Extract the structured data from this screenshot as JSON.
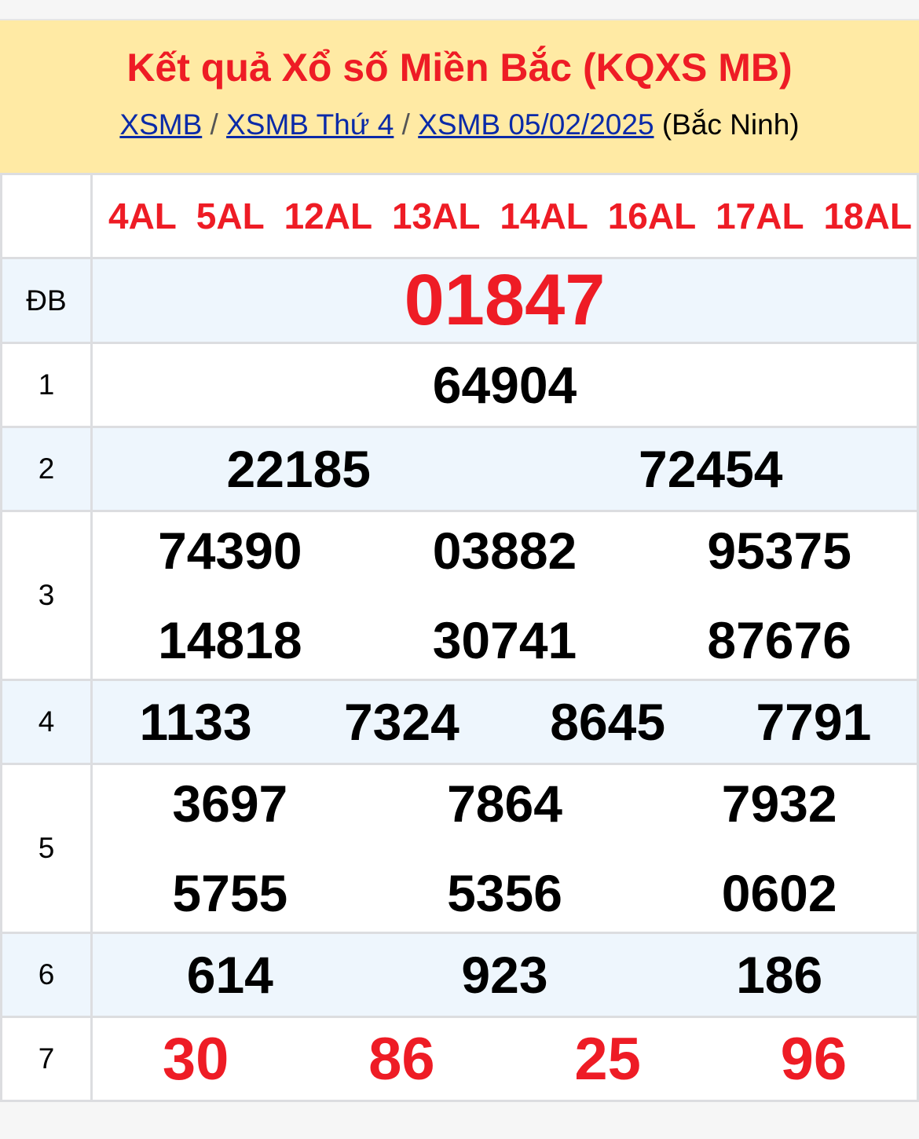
{
  "header": {
    "title": "Kết quả Xổ số Miền Bắc (KQXS MB)",
    "breadcrumb": [
      {
        "label": "XSMB"
      },
      {
        "label": "XSMB Thứ 4"
      },
      {
        "label": "XSMB 05/02/2025"
      }
    ],
    "separator": "/",
    "province": "(Bắc Ninh)"
  },
  "codes": [
    "4AL",
    "5AL",
    "12AL",
    "13AL",
    "14AL",
    "16AL",
    "17AL",
    "18AL"
  ],
  "prizes": [
    {
      "label": "ĐB",
      "numbers": [
        "01847"
      ]
    },
    {
      "label": "1",
      "numbers": [
        "64904"
      ]
    },
    {
      "label": "2",
      "numbers": [
        "22185",
        "72454"
      ]
    },
    {
      "label": "3",
      "numbers": [
        "74390",
        "03882",
        "95375",
        "14818",
        "30741",
        "87676"
      ]
    },
    {
      "label": "4",
      "numbers": [
        "1133",
        "7324",
        "8645",
        "7791"
      ]
    },
    {
      "label": "5",
      "numbers": [
        "3697",
        "7864",
        "7932",
        "5755",
        "5356",
        "0602"
      ]
    },
    {
      "label": "6",
      "numbers": [
        "614",
        "923",
        "186"
      ]
    },
    {
      "label": "7",
      "numbers": [
        "30",
        "86",
        "25",
        "96"
      ]
    }
  ],
  "colors": {
    "accent_red": "#ee1c25",
    "link_blue": "#0a2aa8",
    "header_bg": "#ffeaa4",
    "alt_row_bg": "#eef6fd"
  }
}
